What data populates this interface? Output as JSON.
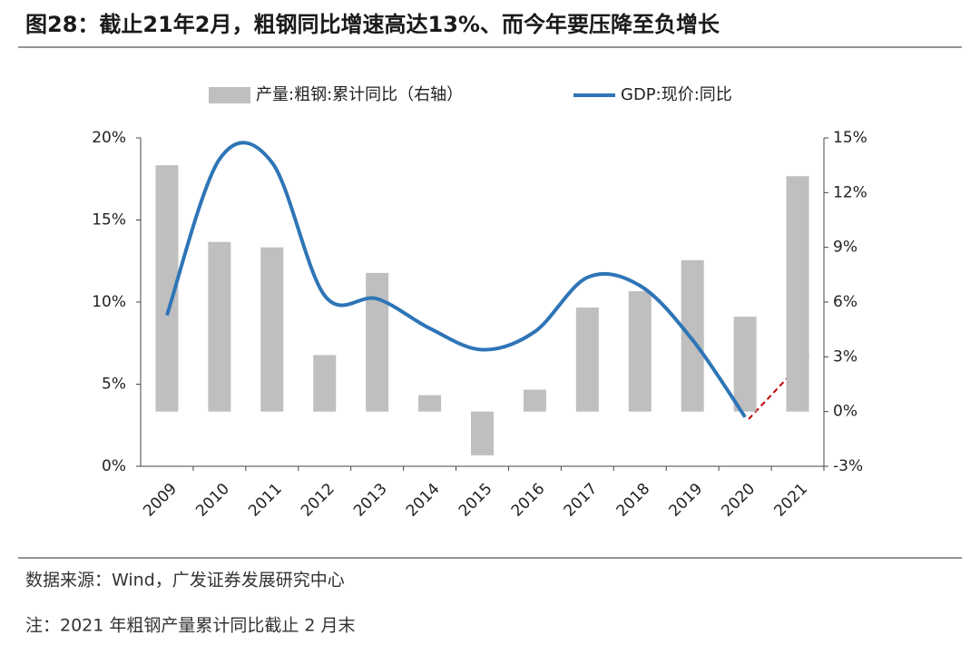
{
  "chart_data": {
    "type": "bar-line",
    "title": "图28：截止21年2月，粗钢同比增速高达13%、而今年要压降至负增长",
    "categories": [
      "2009",
      "2010",
      "2011",
      "2012",
      "2013",
      "2014",
      "2015",
      "2016",
      "2017",
      "2018",
      "2019",
      "2020",
      "2021"
    ],
    "series": [
      {
        "name": "产量:粗钢:累计同比（右轴）",
        "type": "bar",
        "axis": "y2",
        "color": "#bfbfbf",
        "values": [
          13.5,
          9.3,
          9.0,
          3.1,
          7.6,
          0.9,
          -2.4,
          1.2,
          5.7,
          6.6,
          8.3,
          5.2,
          12.9
        ]
      },
      {
        "name": "GDP:现价:同比",
        "type": "line",
        "color": "#2e75b6",
        "values": [
          9.2,
          18.7,
          18.5,
          10.4,
          10.2,
          8.4,
          7.1,
          8.2,
          11.5,
          11.0,
          7.7,
          3.0,
          null
        ]
      }
    ],
    "ylim": [
      0,
      20
    ],
    "yticks": [
      {
        "value": 0,
        "label": "0%"
      },
      {
        "value": 5,
        "label": "5%"
      },
      {
        "value": 10,
        "label": "10%"
      },
      {
        "value": 15,
        "label": "15%"
      },
      {
        "value": 20,
        "label": "20%"
      }
    ],
    "y2lim": [
      -3,
      15
    ],
    "y2ticks": [
      {
        "value": -3,
        "label": "-3%"
      },
      {
        "value": 0,
        "label": "0%"
      },
      {
        "value": 3,
        "label": "3%"
      },
      {
        "value": 6,
        "label": "6%"
      },
      {
        "value": 9,
        "label": "9%"
      },
      {
        "value": 12,
        "label": "12%"
      },
      {
        "value": 15,
        "label": "15%"
      }
    ],
    "legend": "top",
    "source": "数据来源：Wind，广发证券发展研究中心",
    "note": "注：2021 年粗钢产量累计同比截止 2 月末"
  }
}
